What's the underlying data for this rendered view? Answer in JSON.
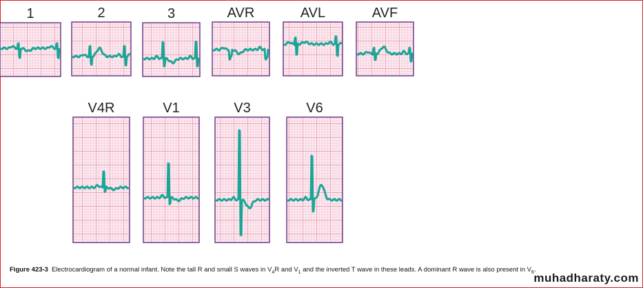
{
  "top_row": [
    "1",
    "2",
    "3",
    "AVR",
    "AVL",
    "AVF"
  ],
  "bottom_row": [
    "V4R",
    "V1",
    "V3",
    "V6"
  ],
  "caption": {
    "label": "Figure 423-3",
    "segments": [
      "Electrocardiogram of a normal infant. Note the tall R and small S waves in V",
      "4",
      "R and V",
      "1",
      " and the inverted T wave in these leads. A dominant R wave is also present in V",
      "6",
      "."
    ]
  },
  "watermark": "muhadharaty.com"
}
